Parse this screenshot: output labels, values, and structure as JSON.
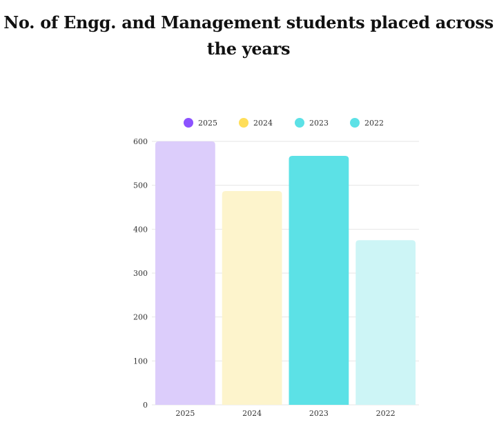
{
  "chart_data": {
    "type": "bar",
    "title": "No. of Engg. and Management students placed across the years",
    "categories": [
      "2025",
      "2024",
      "2023",
      "2022"
    ],
    "values": [
      600,
      487,
      567,
      375
    ],
    "colors": [
      "#dccdfb",
      "#fdf4cc",
      "#5ce1e6",
      "#cdf5f6"
    ],
    "legend": [
      {
        "label": "2025",
        "color": "#8c52ff"
      },
      {
        "label": "2024",
        "color": "#ffde59"
      },
      {
        "label": "2023",
        "color": "#5ce1e6"
      },
      {
        "label": "2022",
        "color": "#5ce1e6"
      }
    ],
    "legend_position": "top",
    "ylim": [
      0,
      600
    ],
    "yticks": [
      "0",
      "100",
      "200",
      "300",
      "400",
      "500",
      "600"
    ],
    "grid": true,
    "xlabel": "",
    "ylabel": ""
  }
}
